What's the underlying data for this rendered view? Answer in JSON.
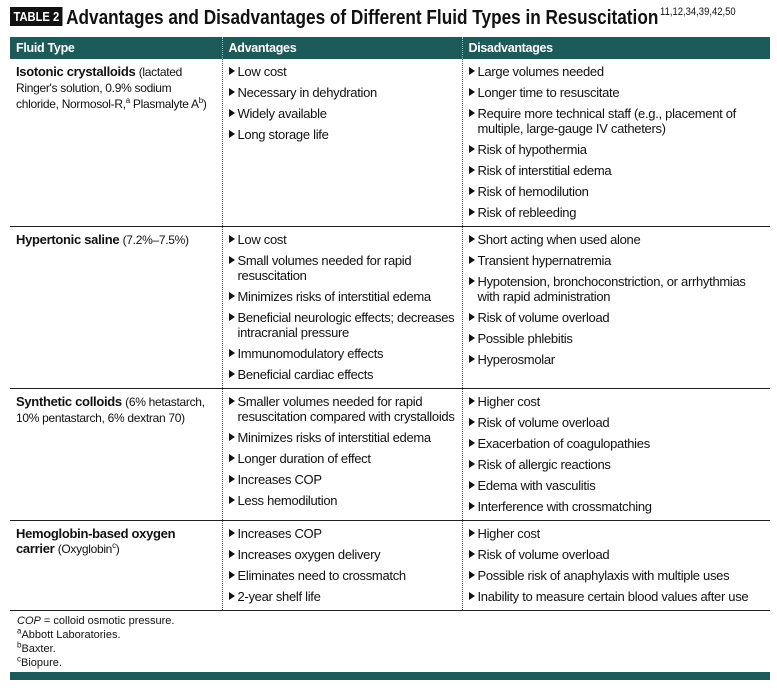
{
  "title": {
    "badge": "TABLE 2",
    "text": "Advantages and Disadvantages of Different Fluid Types in Resuscitation",
    "refs": "11,12,34,39,42,50"
  },
  "table": {
    "headers": [
      "Fluid Type",
      "Advantages",
      "Disadvantages"
    ],
    "rows": [
      {
        "fluid": "Isotonic crystalloids",
        "detail": [
          {
            "text": "(lactated Ringer's solution, 0.9% sodium chloride, Normosol-R,"
          },
          {
            "sup": "a"
          },
          {
            "text": " Plasmalyte A"
          },
          {
            "sup": "b"
          },
          {
            "text": ")"
          }
        ],
        "advantages": [
          "Low cost",
          "Necessary in dehydration",
          "Widely available",
          "Long storage life"
        ],
        "disadvantages": [
          "Large volumes needed",
          "Longer time to resuscitate",
          "Require more technical staff (e.g., placement of multiple, large-gauge IV catheters)",
          "Risk of hypothermia",
          "Risk of interstitial edema",
          "Risk of hemodilution",
          "Risk of rebleeding"
        ]
      },
      {
        "fluid": "Hypertonic saline",
        "detail": [
          {
            "text": "(7.2%–7.5%)"
          }
        ],
        "advantages": [
          "Low cost",
          "Small volumes needed for rapid resuscitation",
          "Minimizes risks of interstitial edema",
          "Beneficial neurologic effects; decreases intracranial pressure",
          "Immunomodulatory effects",
          "Beneficial cardiac effects"
        ],
        "disadvantages": [
          "Short acting when used alone",
          "Transient hypernatremia",
          "Hypotension, bronchoconstriction, or arrhythmias with rapid administration",
          "Risk of volume overload",
          "Possible phlebitis",
          "Hyperosmolar"
        ]
      },
      {
        "fluid": "Synthetic colloids",
        "detail": [
          {
            "text": "(6% hetastarch, 10% pentastarch, 6% dextran 70)"
          }
        ],
        "advantages": [
          "Smaller volumes needed for rapid resuscitation compared with crystalloids",
          "Minimizes risks of interstitial edema",
          "Longer duration of effect",
          "Increases COP",
          "Less hemodilution"
        ],
        "disadvantages": [
          "Higher cost",
          "Risk of volume overload",
          "Exacerbation of coagulopathies",
          "Risk of allergic reactions",
          "Edema with vasculitis",
          "Interference with crossmatching"
        ]
      },
      {
        "fluid": "Hemoglobin-based oxygen carrier",
        "detail": [
          {
            "text": "(Oxyglobin"
          },
          {
            "sup": "c"
          },
          {
            "text": ")"
          }
        ],
        "advantages": [
          "Increases COP",
          "Increases oxygen delivery",
          "Eliminates need to crossmatch",
          "2-year shelf life"
        ],
        "disadvantages": [
          "Higher cost",
          "Risk of volume overload",
          "Possible risk of anaphylaxis with multiple uses",
          "Inability to measure certain blood values after use"
        ]
      }
    ]
  },
  "footnotes": [
    {
      "abbr": "COP",
      "text": " = colloid osmotic pressure."
    },
    {
      "sup": "a",
      "text": "Abbott Laboratories."
    },
    {
      "sup": "b",
      "text": "Baxter."
    },
    {
      "sup": "c",
      "text": "Biopure."
    }
  ]
}
